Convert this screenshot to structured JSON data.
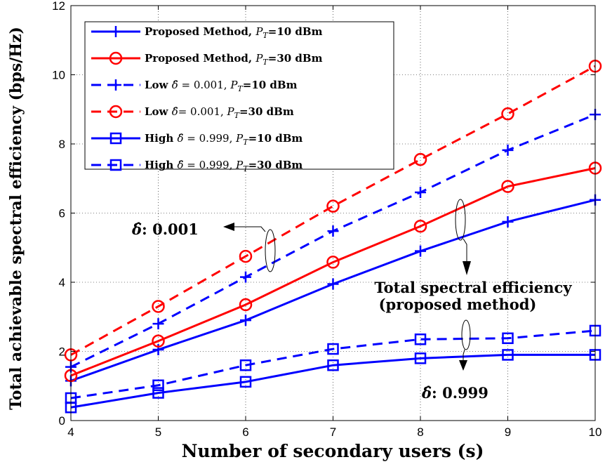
{
  "chart_data": {
    "type": "line",
    "xlabel": "Number of secondary users (s)",
    "ylabel": "Total achievable spectral efficiency (bps/Hz)",
    "xlim": [
      4,
      10
    ],
    "ylim": [
      0,
      12
    ],
    "x": [
      4,
      5,
      6,
      7,
      8,
      9,
      10
    ],
    "x_ticks": [
      "4",
      "5",
      "6",
      "7",
      "8",
      "9",
      "10"
    ],
    "y_ticks": [
      "0",
      "2",
      "4",
      "6",
      "8",
      "10",
      "12"
    ],
    "grid": true,
    "legend_position": "top-left",
    "series": [
      {
        "name": "Proposed Method, P_T=10 dBm",
        "color": "#0000ff",
        "dash": "solid",
        "marker": "plus",
        "values": [
          1.15,
          2.05,
          2.9,
          3.95,
          4.9,
          5.75,
          6.38
        ]
      },
      {
        "name": "Proposed Method, P_T=30 dBm",
        "color": "#ff0000",
        "dash": "solid",
        "marker": "circle",
        "values": [
          1.3,
          2.3,
          3.35,
          4.58,
          5.62,
          6.77,
          7.3
        ]
      },
      {
        "name": "Low δ̂ = 0.001, P_T=10 dBm",
        "color": "#0000ff",
        "dash": "dashed",
        "marker": "plus",
        "values": [
          1.55,
          2.8,
          4.15,
          5.48,
          6.6,
          7.82,
          8.85
        ]
      },
      {
        "name": "Low δ̂= 0.001, P_T=30 dBm",
        "color": "#ff0000",
        "dash": "dashed",
        "marker": "circle",
        "values": [
          1.9,
          3.3,
          4.75,
          6.2,
          7.55,
          8.87,
          10.25
        ]
      },
      {
        "name": "High δ̂ = 0.999, P_T=10 dBm",
        "color": "#0000ff",
        "dash": "solid",
        "marker": "square",
        "values": [
          0.38,
          0.8,
          1.12,
          1.6,
          1.8,
          1.9,
          1.9
        ]
      },
      {
        "name": "High δ̂ = 0.999, P_T=30 dBm",
        "color": "#0000ff",
        "dash": "dashed",
        "marker": "square",
        "values": [
          0.65,
          1.02,
          1.6,
          2.07,
          2.35,
          2.38,
          2.6
        ]
      }
    ],
    "legend": [
      {
        "bold": "Proposed Method,",
        "math_var": "P",
        "math_sub": "T",
        "suffix": "=10 dBm"
      },
      {
        "bold": "Proposed Method,",
        "math_var": "P",
        "math_sub": "T",
        "suffix": "=30 dBm"
      },
      {
        "bold": "Low",
        "delta": "δ̂",
        "eq": " = 0.001,",
        "math_var": "P",
        "math_sub": "T",
        "suffix": "=10 dBm"
      },
      {
        "bold": "Low",
        "delta": "δ̂",
        "eq": "= 0.001,",
        "math_var": "P",
        "math_sub": "T",
        "suffix": "=30 dBm"
      },
      {
        "bold": "High",
        "delta": "δ̂",
        "eq": " = 0.999,",
        "math_var": "P",
        "math_sub": "T",
        "suffix": "=10 dBm"
      },
      {
        "bold": "High",
        "delta": "δ̂",
        "eq": " = 0.999,",
        "math_var": "P",
        "math_sub": "T",
        "suffix": "=30 dBm"
      }
    ],
    "annotations": {
      "low_delta": {
        "symbol": "δ̂",
        "text": ": 0.001"
      },
      "high_delta": {
        "symbol": "δ̂",
        "text": ": 0.999"
      },
      "total_line1": "Total spectral efficiency",
      "total_line2": "(proposed method)"
    }
  }
}
